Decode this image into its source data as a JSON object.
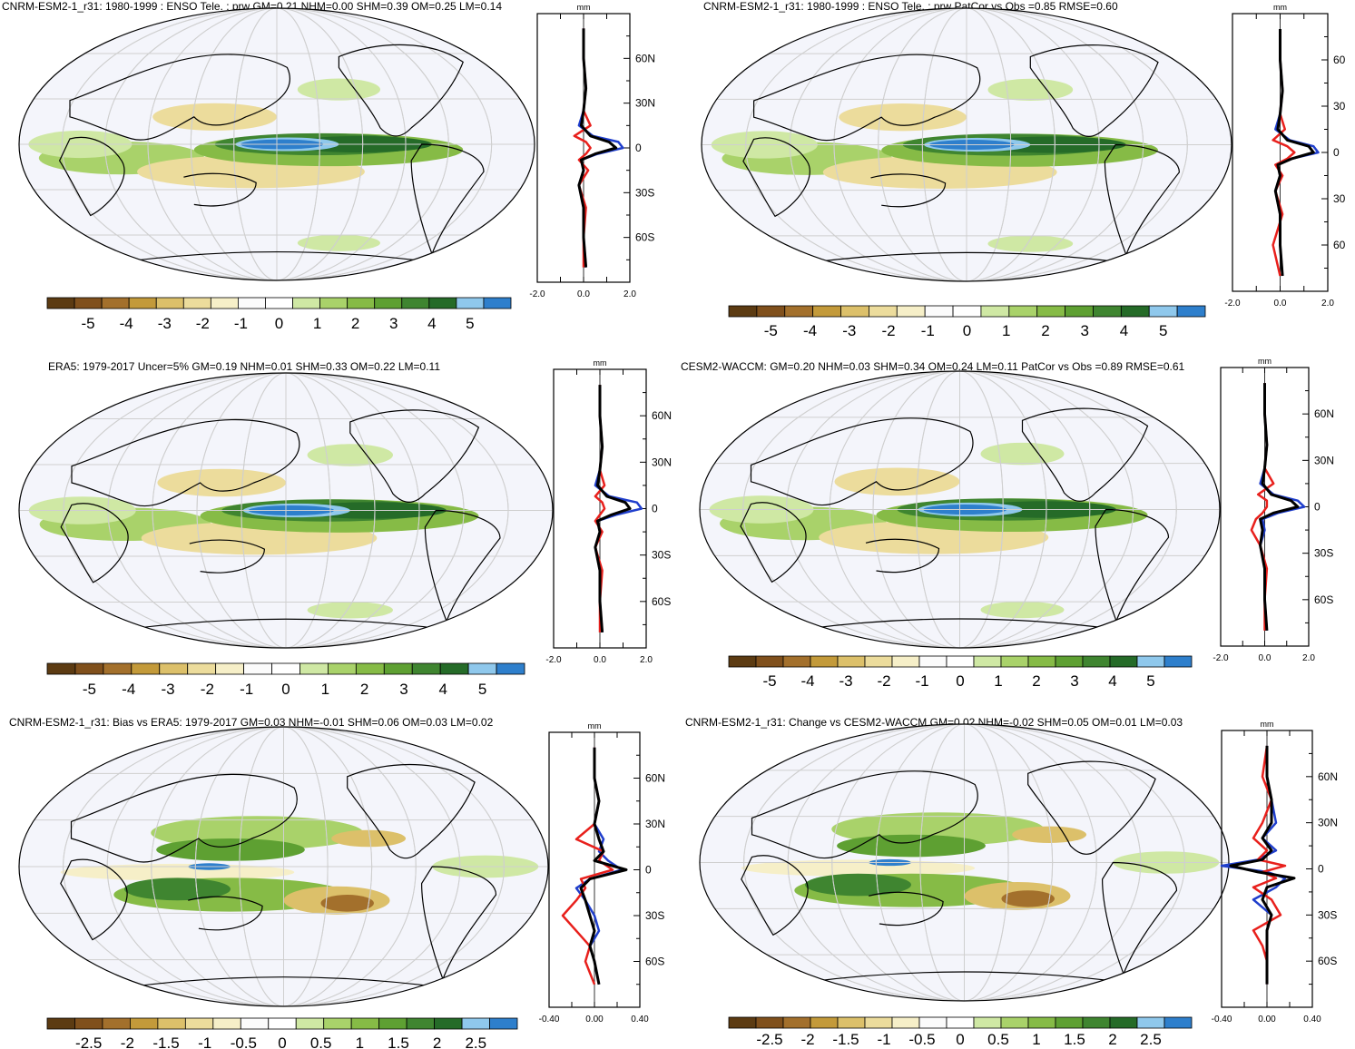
{
  "panels": [
    {
      "title": "CNRM-ESM2-1_r31: 1980-1999 : ENSO Tele. : prw GM=0.21 NHM=0.00 SHM=0.39 OM=0.25 LM=0.14",
      "colorbar_labels": [
        "-5",
        "-4",
        "-3",
        "-2",
        "-1",
        "0",
        "1",
        "2",
        "3",
        "4",
        "5"
      ],
      "profile_unit": "mm",
      "profile_xticks": [
        "-2.0",
        "0.0",
        "2.0"
      ],
      "lat_ticks": [
        "60N",
        "30N",
        "0",
        "30S",
        "60S"
      ]
    },
    {
      "title": "CNRM-ESM2-1_r31: 1980-1999 : ENSO Tele. : prw PatCor vs Obs =0.85 RMSE=0.60",
      "colorbar_labels": [
        "-5",
        "-4",
        "-3",
        "-2",
        "-1",
        "0",
        "1",
        "2",
        "3",
        "4",
        "5"
      ],
      "profile_unit": "mm",
      "profile_xticks": [
        "-2.0",
        "0.0",
        "2.0"
      ],
      "lat_ticks": [
        "60",
        "30",
        "0",
        "30",
        "60"
      ]
    },
    {
      "title": "ERA5: 1979-2017 Uncer=5% GM=0.19 NHM=0.01 SHM=0.33 OM=0.22 LM=0.11",
      "colorbar_labels": [
        "-5",
        "-4",
        "-3",
        "-2",
        "-1",
        "0",
        "1",
        "2",
        "3",
        "4",
        "5"
      ],
      "profile_unit": "mm",
      "profile_xticks": [
        "-2.0",
        "0.0",
        "2.0"
      ],
      "lat_ticks": [
        "60N",
        "30N",
        "0",
        "30S",
        "60S"
      ]
    },
    {
      "title": "CESM2-WACCM: GM=0.20 NHM=0.03 SHM=0.34 OM=0.24 LM=0.11 PatCor vs Obs =0.89 RMSE=0.61",
      "colorbar_labels": [
        "-5",
        "-4",
        "-3",
        "-2",
        "-1",
        "0",
        "1",
        "2",
        "3",
        "4",
        "5"
      ],
      "profile_unit": "mm",
      "profile_xticks": [
        "-2.0",
        "0.0",
        "2.0"
      ],
      "lat_ticks": [
        "60N",
        "30N",
        "0",
        "30S",
        "60S"
      ]
    },
    {
      "title": "CNRM-ESM2-1_r31: Bias vs ERA5: 1979-2017 GM=0.03 NHM=-0.01 SHM=0.06 OM=0.03 LM=0.02",
      "colorbar_labels": [
        "-2.5",
        "-2",
        "-1.5",
        "-1",
        "-0.5",
        "0",
        "0.5",
        "1",
        "1.5",
        "2",
        "2.5"
      ],
      "profile_unit": "mm",
      "profile_xticks": [
        "-0.40",
        "0.00",
        "0.40"
      ],
      "lat_ticks": [
        "60N",
        "30N",
        "0",
        "30S",
        "60S"
      ]
    },
    {
      "title": "CNRM-ESM2-1_r31: Change vs CESM2-WACCM GM=0.02 NHM=-0.02 SHM=0.05 OM=0.01 LM=0.03",
      "colorbar_labels": [
        "-2.5",
        "-2",
        "-1.5",
        "-1",
        "-0.5",
        "0",
        "0.5",
        "1",
        "1.5",
        "2",
        "2.5"
      ],
      "profile_unit": "mm",
      "profile_xticks": [
        "-0.40",
        "0.00",
        "0.40"
      ],
      "lat_ticks": [
        "60N",
        "30N",
        "0",
        "30S",
        "60S"
      ]
    }
  ],
  "colors": {
    "scale": [
      "#5c3b12",
      "#80501c",
      "#a3702c",
      "#c39a3a",
      "#dcc06a",
      "#ecdc9c",
      "#f6efc8",
      "#fbfbfb",
      "#ffffff",
      "#cfe8a4",
      "#a9d26a",
      "#86bb46",
      "#5ea032",
      "#3f8530",
      "#256b28",
      "#8fc8ec",
      "#2e7fcc"
    ],
    "map_bg": "#f4f5fb",
    "series": [
      "#1f3ecc",
      "#e8201c",
      "#000000"
    ]
  },
  "chart_data": [
    {
      "type": "heatmap",
      "title": "CNRM-ESM2-1_r31: 1980-1999 : ENSO Tele. : prw GM=0.21 NHM=0.00 SHM=0.39 OM=0.25 LM=0.14",
      "colorbar_range": [
        -5,
        5
      ],
      "profile": {
        "ylim": [
          -90,
          90
        ],
        "xlim": [
          -2.0,
          2.0
        ],
        "lat": [
          80,
          60,
          40,
          25,
          15,
          8,
          4,
          0,
          -4,
          -8,
          -15,
          -25,
          -40,
          -60,
          -80
        ],
        "series": [
          {
            "values": [
              0.0,
              0.0,
              0.1,
              0.0,
              -0.2,
              0.4,
              1.5,
              1.7,
              0.6,
              -0.1,
              0.0,
              -0.2,
              0.0,
              0.0,
              0.1
            ]
          },
          {
            "values": [
              0.0,
              0.0,
              0.1,
              0.0,
              0.3,
              -0.4,
              0.1,
              0.3,
              0.1,
              -0.2,
              0.2,
              -0.2,
              0.1,
              0.0,
              0.0
            ]
          },
          {
            "values": [
              0.0,
              0.0,
              0.1,
              0.0,
              -0.1,
              0.3,
              1.1,
              1.4,
              0.5,
              -0.1,
              0.0,
              -0.2,
              0.0,
              0.0,
              0.1
            ]
          }
        ]
      }
    },
    {
      "type": "heatmap",
      "title": "CNRM-ESM2-1_r31: 1980-1999 : ENSO Tele. : prw PatCor vs Obs =0.85 RMSE=0.60",
      "colorbar_range": [
        -5,
        5
      ],
      "profile": {
        "ylim": [
          -90,
          90
        ],
        "xlim": [
          -2.0,
          2.0
        ],
        "lat": [
          80,
          60,
          40,
          25,
          15,
          8,
          4,
          0,
          -4,
          -8,
          -15,
          -25,
          -40,
          -60,
          -80
        ],
        "series": [
          {
            "values": [
              0.0,
              0.0,
              0.1,
              0.0,
              -0.2,
              0.4,
              1.4,
              1.6,
              0.5,
              -0.1,
              0.0,
              -0.2,
              0.0,
              0.0,
              0.1
            ]
          },
          {
            "values": [
              0.0,
              0.0,
              0.1,
              0.0,
              0.2,
              -0.3,
              0.3,
              0.6,
              0.3,
              -0.2,
              0.1,
              -0.2,
              0.1,
              -0.3,
              0.0
            ]
          },
          {
            "values": [
              0.0,
              0.0,
              0.1,
              0.0,
              -0.1,
              0.3,
              1.2,
              1.4,
              0.5,
              -0.1,
              0.0,
              -0.2,
              0.0,
              0.0,
              0.1
            ]
          }
        ]
      }
    },
    {
      "type": "heatmap",
      "title": "ERA5: 1979-2017 Uncer=5% GM=0.19 NHM=0.01 SHM=0.33 OM=0.22 LM=0.11",
      "colorbar_range": [
        -5,
        5
      ],
      "profile": {
        "ylim": [
          -90,
          90
        ],
        "xlim": [
          -2.0,
          2.0
        ],
        "lat": [
          80,
          60,
          40,
          25,
          15,
          8,
          4,
          0,
          -4,
          -8,
          -15,
          -25,
          -40,
          -60,
          -80
        ],
        "series": [
          {
            "values": [
              0.0,
              0.0,
              0.1,
              0.0,
              -0.2,
              0.4,
              1.6,
              1.8,
              0.7,
              -0.1,
              0.0,
              -0.2,
              0.0,
              0.0,
              0.1
            ]
          },
          {
            "values": [
              0.0,
              0.0,
              0.1,
              0.0,
              0.2,
              -0.2,
              0.1,
              0.2,
              0.0,
              -0.2,
              0.1,
              -0.2,
              0.1,
              0.0,
              0.0
            ]
          },
          {
            "values": [
              0.0,
              0.0,
              0.1,
              0.0,
              -0.1,
              0.3,
              1.1,
              1.3,
              0.5,
              -0.1,
              0.0,
              -0.2,
              0.0,
              0.0,
              0.1
            ]
          }
        ]
      }
    },
    {
      "type": "heatmap",
      "title": "CESM2-WACCM: GM=0.20 NHM=0.03 SHM=0.34 OM=0.24 LM=0.11 PatCor vs Obs =0.89 RMSE=0.61",
      "colorbar_range": [
        -5,
        5
      ],
      "profile": {
        "ylim": [
          -90,
          90
        ],
        "xlim": [
          -2.0,
          2.0
        ],
        "lat": [
          80,
          60,
          40,
          25,
          15,
          8,
          4,
          0,
          -4,
          -8,
          -15,
          -25,
          -40,
          -60,
          -80
        ],
        "series": [
          {
            "values": [
              0.0,
              0.0,
              0.1,
              0.0,
              -0.2,
              0.4,
              1.5,
              1.8,
              0.6,
              -0.1,
              0.0,
              -0.2,
              0.0,
              0.0,
              0.1
            ]
          },
          {
            "values": [
              0.0,
              0.0,
              0.1,
              0.0,
              0.4,
              -0.3,
              0.1,
              0.1,
              -0.1,
              -0.4,
              -0.6,
              -0.2,
              0.1,
              0.0,
              0.0
            ]
          },
          {
            "values": [
              0.0,
              0.0,
              0.1,
              0.0,
              -0.1,
              0.3,
              1.2,
              1.5,
              0.4,
              -0.2,
              -0.1,
              -0.2,
              0.0,
              0.0,
              0.1
            ]
          }
        ]
      }
    },
    {
      "type": "heatmap",
      "title": "CNRM-ESM2-1_r31: Bias vs ERA5: 1979-2017 GM=0.03 NHM=-0.01 SHM=0.06 OM=0.03 LM=0.02",
      "colorbar_range": [
        -2.5,
        2.5
      ],
      "profile": {
        "ylim": [
          -90,
          90
        ],
        "xlim": [
          -0.5,
          0.5
        ],
        "lat": [
          80,
          60,
          45,
          30,
          20,
          12,
          6,
          0,
          -6,
          -12,
          -20,
          -30,
          -40,
          -50,
          -60,
          -75
        ],
        "series": [
          {
            "values": [
              0.0,
              0.0,
              0.05,
              0.0,
              0.1,
              0.05,
              0.15,
              0.3,
              -0.05,
              -0.2,
              -0.1,
              0.0,
              0.05,
              -0.05,
              0.0,
              0.05
            ]
          },
          {
            "values": [
              0.0,
              0.0,
              0.05,
              0.0,
              -0.2,
              0.1,
              0.05,
              0.2,
              -0.15,
              -0.1,
              -0.2,
              -0.35,
              -0.2,
              -0.05,
              -0.1,
              0.0
            ]
          },
          {
            "values": [
              0.0,
              0.0,
              0.05,
              0.0,
              0.05,
              0.1,
              0.0,
              0.35,
              -0.05,
              -0.15,
              -0.1,
              -0.05,
              0.0,
              -0.05,
              0.0,
              0.05
            ]
          }
        ]
      }
    },
    {
      "type": "heatmap",
      "title": "CNRM-ESM2-1_r31: Change vs CESM2-WACCM GM=0.02 NHM=-0.02 SHM=0.05 OM=0.01 LM=0.03",
      "colorbar_range": [
        -2.5,
        2.5
      ],
      "profile": {
        "ylim": [
          -90,
          90
        ],
        "xlim": [
          -0.5,
          0.5
        ],
        "lat": [
          80,
          60,
          45,
          30,
          20,
          12,
          6,
          2,
          -2,
          -6,
          -12,
          -20,
          -30,
          -40,
          -50,
          -60,
          -75
        ],
        "series": [
          {
            "values": [
              0.0,
              0.0,
              0.05,
              0.1,
              -0.05,
              0.1,
              -0.1,
              -0.5,
              0.0,
              0.2,
              0.1,
              -0.15,
              0.05,
              0.0,
              0.0,
              0.0,
              0.0
            ]
          },
          {
            "values": [
              0.0,
              -0.05,
              0.05,
              -0.05,
              -0.15,
              0.0,
              -0.1,
              0.2,
              -0.05,
              0.1,
              -0.15,
              0.05,
              0.15,
              -0.15,
              -0.05,
              0.0,
              0.0
            ]
          },
          {
            "values": [
              0.0,
              0.0,
              0.05,
              0.05,
              -0.05,
              0.05,
              -0.05,
              -0.4,
              -0.1,
              0.3,
              0.0,
              -0.05,
              0.05,
              0.0,
              0.0,
              0.0,
              0.0
            ]
          }
        ]
      }
    }
  ]
}
